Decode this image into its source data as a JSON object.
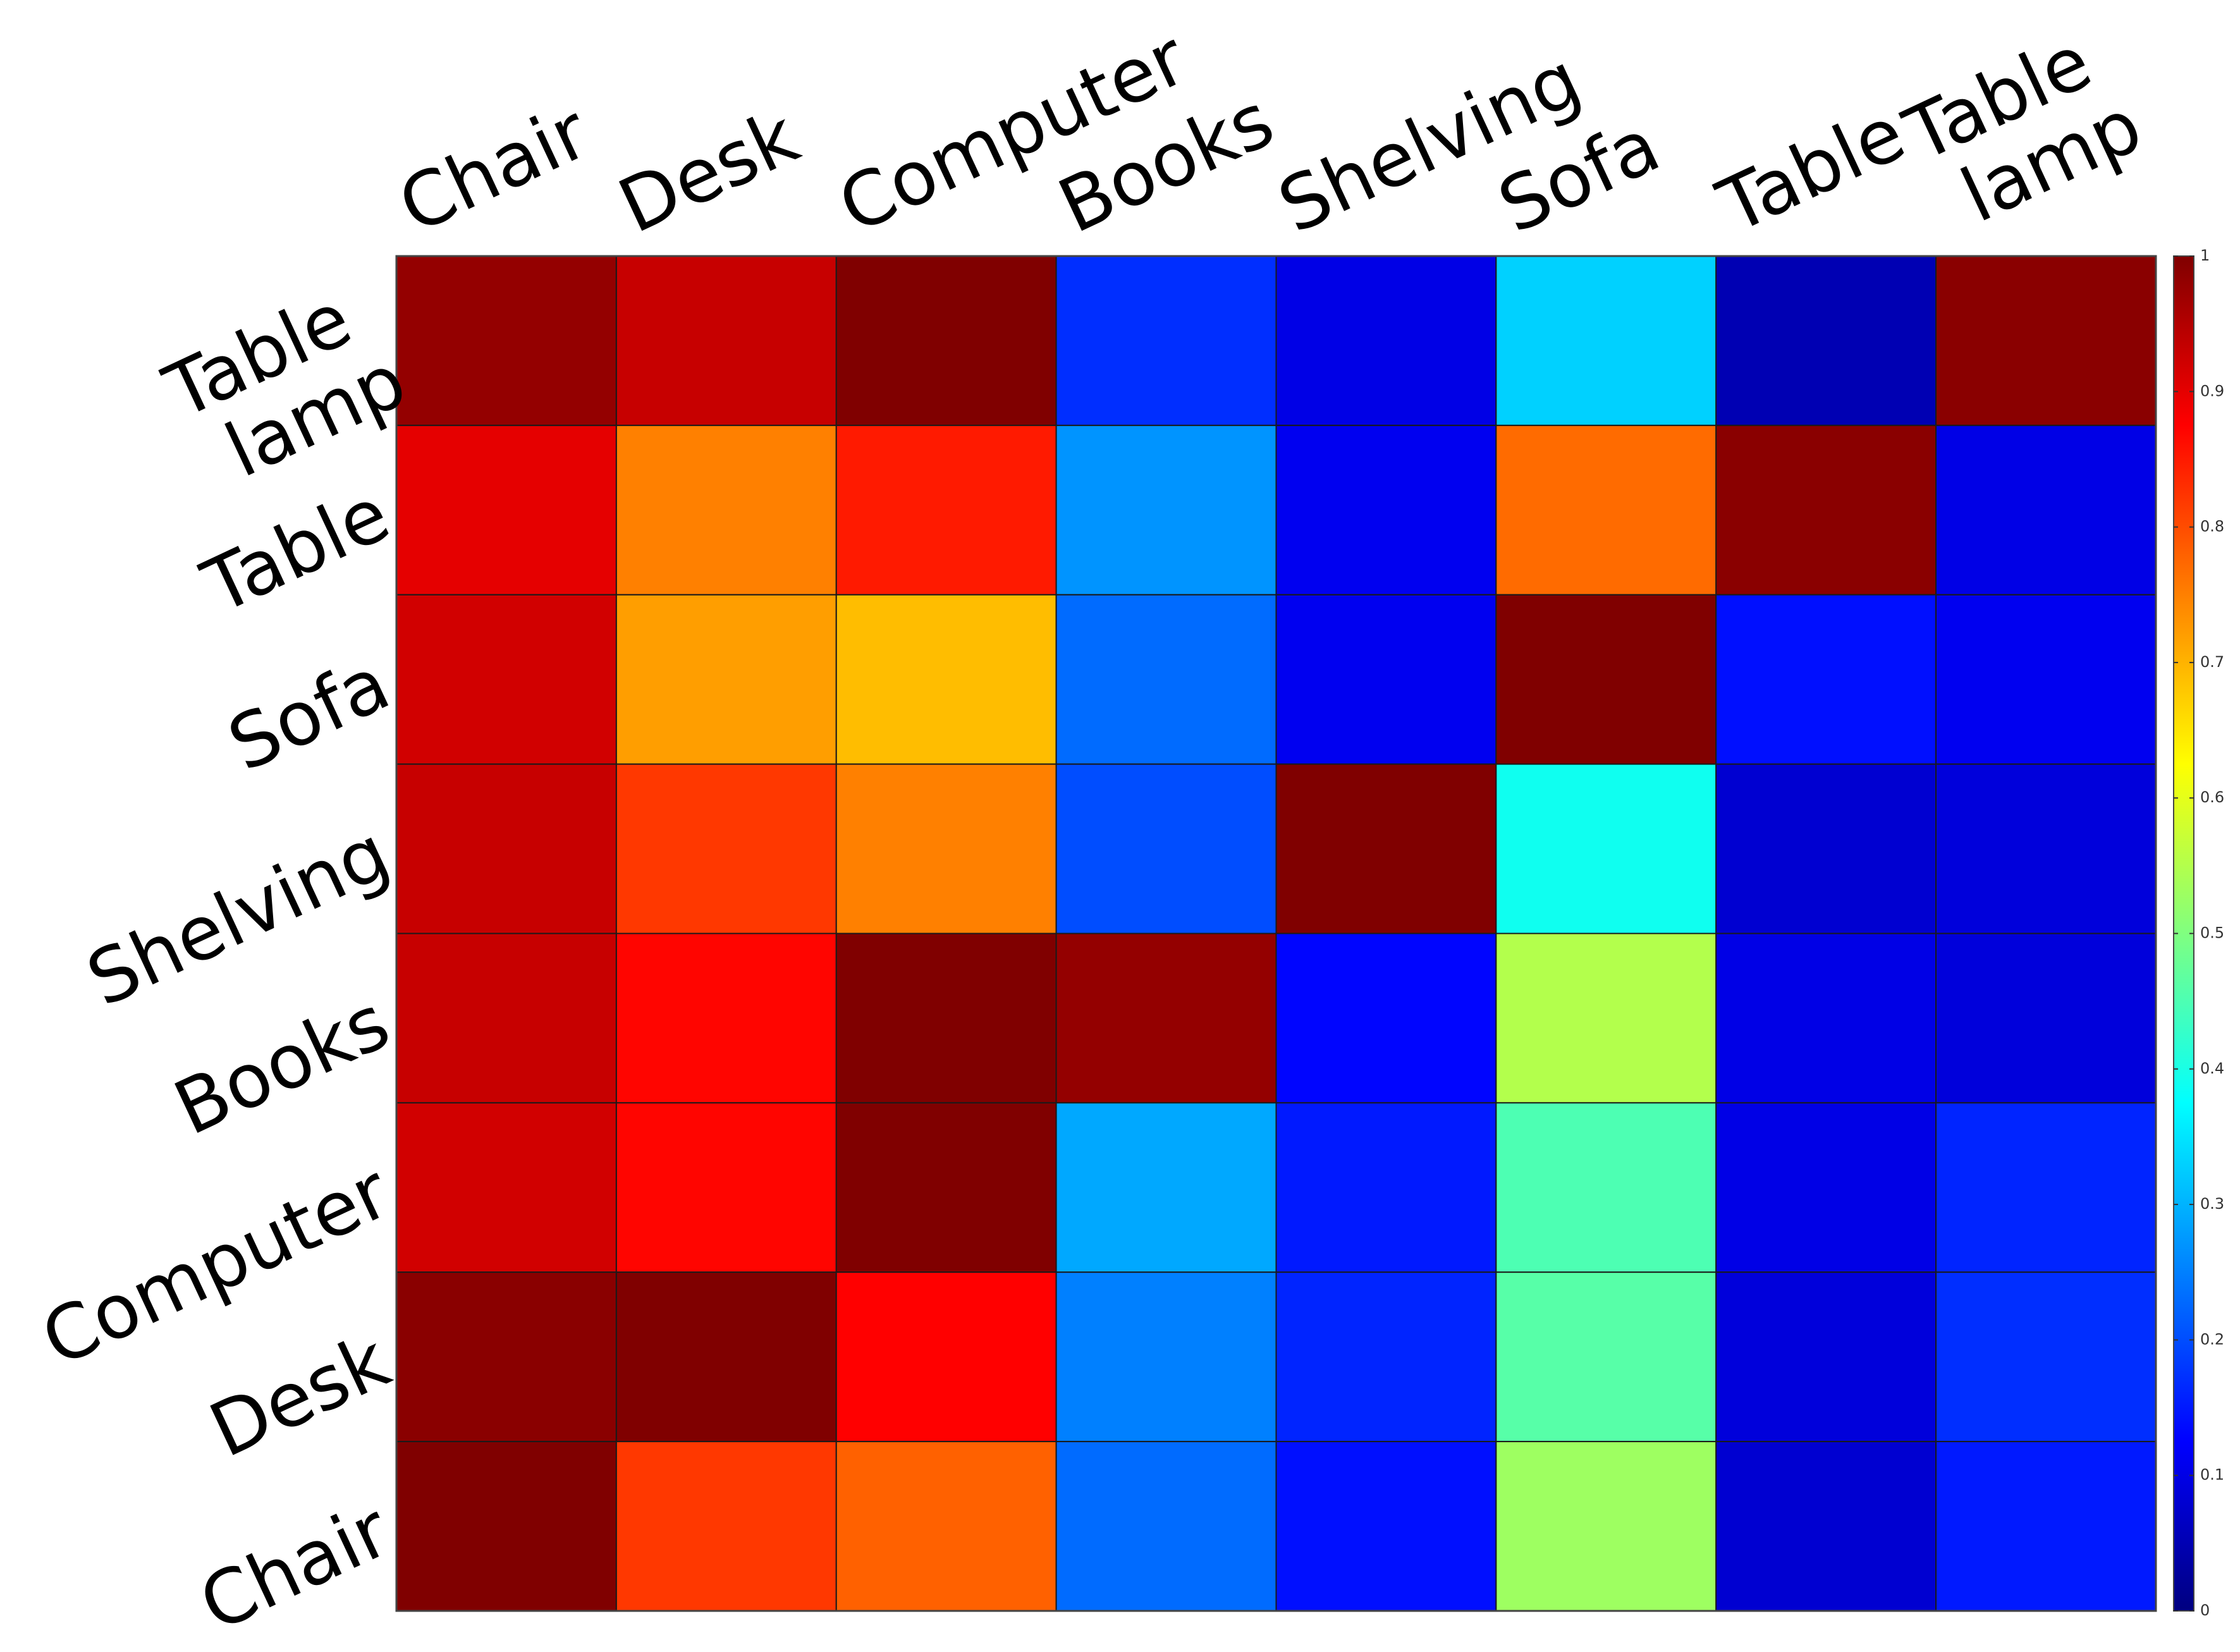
{
  "chart_data": {
    "type": "heatmap",
    "x_categories": [
      "Chair",
      "Desk",
      "Computer",
      "Books",
      "Shelving",
      "Sofa",
      "Table",
      "Table lamp"
    ],
    "y_categories": [
      "Table lamp",
      "Table",
      "Sofa",
      "Shelving",
      "Books",
      "Computer",
      "Desk",
      "Chair"
    ],
    "values": [
      [
        0.98,
        0.93,
        1.0,
        0.17,
        0.1,
        0.33,
        0.05,
        0.99
      ],
      [
        0.9,
        0.75,
        0.85,
        0.27,
        0.11,
        0.77,
        0.99,
        0.1
      ],
      [
        0.92,
        0.72,
        0.69,
        0.23,
        0.11,
        1.0,
        0.14,
        0.11
      ],
      [
        0.93,
        0.82,
        0.75,
        0.2,
        1.0,
        0.39,
        0.08,
        0.09
      ],
      [
        0.93,
        0.87,
        1.0,
        0.98,
        0.13,
        0.55,
        0.1,
        0.09
      ],
      [
        0.92,
        0.87,
        1.0,
        0.29,
        0.15,
        0.45,
        0.1,
        0.16
      ],
      [
        0.99,
        1.0,
        0.875,
        0.25,
        0.16,
        0.46,
        0.09,
        0.17
      ],
      [
        1.0,
        0.82,
        0.78,
        0.23,
        0.14,
        0.53,
        0.08,
        0.15
      ]
    ],
    "colormap": "jet",
    "zlim": [
      0,
      1
    ],
    "zticks": [
      0,
      0.1,
      0.2,
      0.3,
      0.4,
      0.5,
      0.6,
      0.7,
      0.8,
      0.9,
      1
    ]
  }
}
